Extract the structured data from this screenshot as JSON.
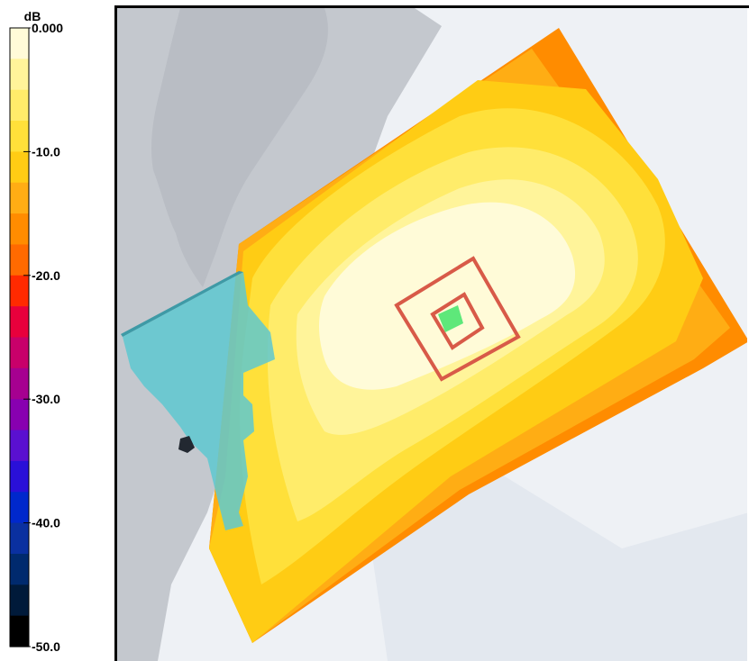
{
  "chart_data": {
    "type": "heatmap",
    "colorbar": {
      "unit": "dB",
      "range": [
        -50,
        0
      ],
      "step": 2.5,
      "tick_labels": [
        {
          "value": 0,
          "label": "0.000"
        },
        {
          "value": -10,
          "label": "-10.0"
        },
        {
          "value": -20,
          "label": "-20.0"
        },
        {
          "value": -30,
          "label": "-30.0"
        },
        {
          "value": -40,
          "label": "-40.0"
        },
        {
          "value": -50,
          "label": "-50.0"
        }
      ],
      "bands": [
        {
          "from": 0,
          "to": -2.5,
          "color": "#fffbd8"
        },
        {
          "from": -2.5,
          "to": -5,
          "color": "#fff49a"
        },
        {
          "from": -5,
          "to": -7.5,
          "color": "#ffec6a"
        },
        {
          "from": -7.5,
          "to": -10,
          "color": "#ffe03a"
        },
        {
          "from": -10,
          "to": -12.5,
          "color": "#ffcc14"
        },
        {
          "from": -12.5,
          "to": -15,
          "color": "#ffad14"
        },
        {
          "from": -15,
          "to": -17.5,
          "color": "#ff8c00"
        },
        {
          "from": -17.5,
          "to": -20,
          "color": "#ff6a00"
        },
        {
          "from": -20,
          "to": -22.5,
          "color": "#ff2a00"
        },
        {
          "from": -22.5,
          "to": -25,
          "color": "#e8003c"
        },
        {
          "from": -25,
          "to": -27.5,
          "color": "#c8006a"
        },
        {
          "from": -27.5,
          "to": -30,
          "color": "#a60090"
        },
        {
          "from": -30,
          "to": -32.5,
          "color": "#8800b0"
        },
        {
          "from": -32.5,
          "to": -35,
          "color": "#5a10d0"
        },
        {
          "from": -35,
          "to": -37.5,
          "color": "#2a10d8"
        },
        {
          "from": -37.5,
          "to": -40,
          "color": "#0028cc"
        },
        {
          "from": -40,
          "to": -42.5,
          "color": "#0a30a0"
        },
        {
          "from": -42.5,
          "to": -45,
          "color": "#002a6e"
        },
        {
          "from": -45,
          "to": -47.5,
          "color": "#001a3a"
        },
        {
          "from": -47.5,
          "to": -50,
          "color": "#000000"
        }
      ]
    },
    "map_levels_shown": [
      {
        "level": "0 to -2.5 dB",
        "color": "#fffbd8"
      },
      {
        "level": "-2.5 to -5 dB",
        "color": "#fff49a"
      },
      {
        "level": "-5 to -7.5 dB",
        "color": "#ffec6a"
      },
      {
        "level": "-7.5 to -10 dB",
        "color": "#ffe03a"
      },
      {
        "level": "-10 to -12.5 dB",
        "color": "#ffcc14"
      },
      {
        "level": "-12.5 to -15 dB",
        "color": "#ffad14"
      },
      {
        "level": "-15 to -17.5 dB",
        "color": "#ff8c00"
      }
    ],
    "colors": {
      "terrain": "#c2c6cc",
      "water": "#e6eaf0",
      "overlay_teal": "#5ec8d0",
      "contour_rings": "#d85a48",
      "source": "#5ee87a"
    }
  }
}
